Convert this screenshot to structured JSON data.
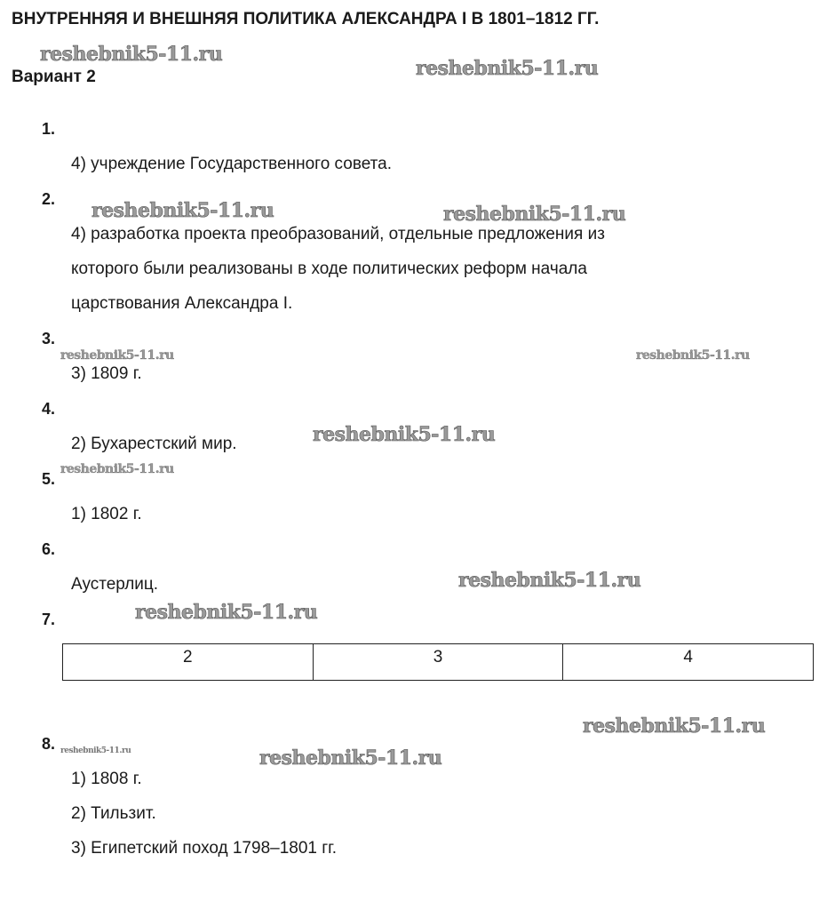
{
  "title": "ВНУТРЕННЯЯ И ВНЕШНЯЯ ПОЛИТИКА АЛЕКСАНДРА I В 1801–1812 ГГ.",
  "variant": "Вариант 2",
  "questions": [
    {
      "num": "1.",
      "answer": [
        "4) учреждение Государственного совета."
      ]
    },
    {
      "num": "2.",
      "answer": [
        "4) разработка проекта преобразований, отдельные предложения из",
        "которого были реализованы в ходе политических реформ начала",
        "царствования Александра I."
      ]
    },
    {
      "num": "3.",
      "answer": [
        "3) 1809 г."
      ]
    },
    {
      "num": "4.",
      "answer": [
        "2) Бухарестский мир."
      ]
    },
    {
      "num": "5.",
      "answer": [
        "1) 1802 г."
      ]
    },
    {
      "num": "6.",
      "answer": [
        "Аустерлиц."
      ]
    },
    {
      "num": "7.",
      "table": [
        "2",
        "3",
        "4"
      ]
    },
    {
      "num": "8.",
      "answer": [
        "1) 1808 г.",
        "2) Тильзит.",
        "3) Египетский поход 1798–1801 гг."
      ]
    }
  ],
  "watermark": "reshebnik5-11.ru"
}
